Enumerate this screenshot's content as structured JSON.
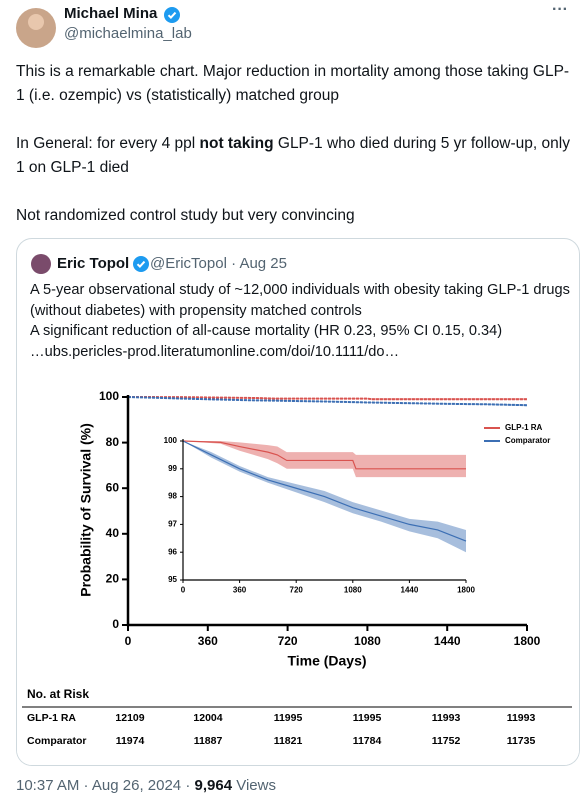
{
  "author": {
    "name": "Michael Mina",
    "handle": "@michaelmina_lab"
  },
  "tweet": {
    "paragraphs": [
      [
        {
          "text": "This is a remarkable chart. Major reduction in mortality among those taking GLP-1 (i.e. ozempic) vs (statistically) matched group"
        }
      ],
      [
        {
          "text": "In General: for every 4 ppl "
        },
        {
          "text": "not taking",
          "bold": true
        },
        {
          "text": " GLP-1 who died during 5 yr follow-up, only 1 on GLP-1 died"
        }
      ],
      [
        {
          "text": "Not randomized control study but very convincing"
        }
      ]
    ]
  },
  "quoted_tweet": {
    "author": {
      "name": "Eric Topol",
      "handle": "@EricTopol",
      "date": "Aug 25"
    },
    "lines": [
      "A 5-year observational study of ~12,000 individuals with obesity taking GLP-1 drugs (without diabetes) with propensity matched controls",
      "A significant reduction of all-cause mortality (HR 0.23, 95% CI 0.15, 0.34)",
      "…ubs.pericles-prod.literatumonline.com/doi/10.1111/do…"
    ],
    "chart": {
      "type": "line",
      "xlabel": "Time (Days)",
      "ylabel": "Probability of Survival (%)",
      "xlim": [
        0,
        1800
      ],
      "xticks": [
        0,
        360,
        720,
        1080,
        1440,
        1800
      ],
      "ylim": [
        0,
        100
      ],
      "yticks": [
        0,
        20,
        40,
        60,
        80,
        100
      ],
      "inset": {
        "xlim": [
          0,
          1800
        ],
        "xticks": [
          0,
          360,
          720,
          1080,
          1440,
          1800
        ],
        "ylim": [
          95,
          100
        ],
        "yticks": [
          95,
          96,
          97,
          98,
          99,
          100
        ]
      },
      "series": [
        {
          "name": "GLP-1 RA",
          "color": "#d9534f",
          "x": [
            0,
            240,
            360,
            540,
            600,
            660,
            1080,
            1100,
            1800
          ],
          "values": [
            100,
            99.95,
            99.8,
            99.6,
            99.5,
            99.3,
            99.3,
            99.0,
            99.0
          ],
          "ci_lower": [
            100,
            99.9,
            99.65,
            99.35,
            99.2,
            99.0,
            99.0,
            98.7,
            98.7
          ],
          "ci_upper": [
            100,
            100,
            99.95,
            99.85,
            99.8,
            99.6,
            99.6,
            99.5,
            99.5
          ]
        },
        {
          "name": "Comparator",
          "color": "#3c6fb4",
          "x": [
            0,
            180,
            360,
            540,
            720,
            900,
            1080,
            1260,
            1440,
            1620,
            1800
          ],
          "values": [
            100,
            99.5,
            99.0,
            98.6,
            98.3,
            98.0,
            97.6,
            97.3,
            97.0,
            96.8,
            96.4
          ],
          "ci_lower": [
            100,
            99.4,
            98.9,
            98.5,
            98.15,
            97.8,
            97.4,
            97.1,
            96.75,
            96.5,
            96.0
          ],
          "ci_upper": [
            100,
            99.6,
            99.1,
            98.7,
            98.45,
            98.2,
            97.8,
            97.5,
            97.2,
            97.1,
            96.8
          ]
        }
      ],
      "risk_table": {
        "title": "No. at Risk",
        "rows": [
          {
            "name": "GLP-1 RA",
            "values": [
              12109,
              12004,
              11995,
              11995,
              11993,
              11993
            ]
          },
          {
            "name": "Comparator",
            "values": [
              11974,
              11887,
              11821,
              11784,
              11752,
              11735
            ]
          }
        ]
      }
    }
  },
  "footer": {
    "time": "10:37 AM",
    "date": "Aug 26, 2024",
    "views": "9,964",
    "views_label": "Views"
  }
}
